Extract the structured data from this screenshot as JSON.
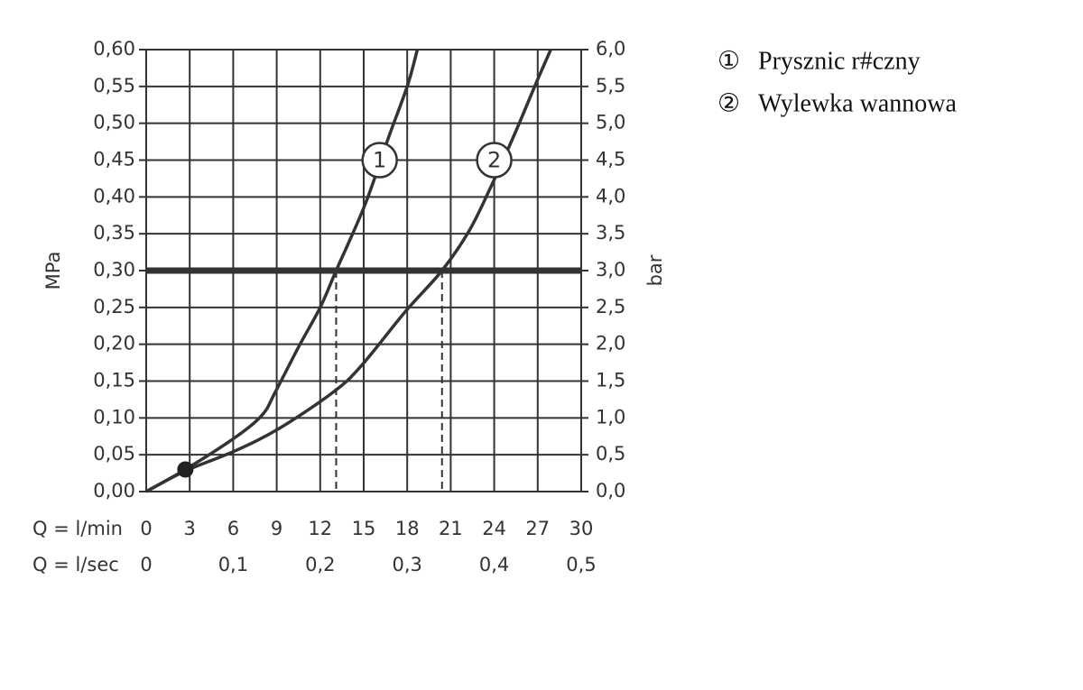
{
  "chart_data": {
    "type": "line",
    "x_label": "Q = l/min",
    "x2_label": "Q = l/sec",
    "y_label": "MPa",
    "y2_label": "bar",
    "xlim": [
      0,
      30
    ],
    "xticks": [
      0,
      3,
      6,
      9,
      12,
      15,
      18,
      21,
      24,
      27,
      30
    ],
    "x2lim": [
      0,
      0.5
    ],
    "x2ticks": [
      0,
      {
        "value": 0.1,
        "label": "0,1"
      },
      {
        "value": 0.2,
        "label": "0,2"
      },
      {
        "value": 0.3,
        "label": "0,3"
      },
      {
        "value": 0.4,
        "label": "0,4"
      },
      {
        "value": 0.5,
        "label": "0,5"
      }
    ],
    "ylim": [
      0,
      0.6
    ],
    "yticks": [
      {
        "value": 0,
        "label": "0,00"
      },
      {
        "value": 0.05,
        "label": "0,05"
      },
      {
        "value": 0.1,
        "label": "0,10"
      },
      {
        "value": 0.15,
        "label": "0,15"
      },
      {
        "value": 0.2,
        "label": "0,20"
      },
      {
        "value": 0.25,
        "label": "0,25"
      },
      {
        "value": 0.3,
        "label": "0,30"
      },
      {
        "value": 0.35,
        "label": "0,35"
      },
      {
        "value": 0.4,
        "label": "0,40"
      },
      {
        "value": 0.45,
        "label": "0,45"
      },
      {
        "value": 0.5,
        "label": "0,50"
      },
      {
        "value": 0.55,
        "label": "0,55"
      },
      {
        "value": 0.6,
        "label": "0,60"
      }
    ],
    "y2lim": [
      0,
      6
    ],
    "y2ticks": [
      {
        "value": 0,
        "label": "0,0"
      },
      {
        "value": 0.5,
        "label": "0,5"
      },
      {
        "value": 1,
        "label": "1,0"
      },
      {
        "value": 1.5,
        "label": "1,5"
      },
      {
        "value": 2,
        "label": "2,0"
      },
      {
        "value": 2.5,
        "label": "2,5"
      },
      {
        "value": 3,
        "label": "3,0"
      },
      {
        "value": 3.5,
        "label": "3,5"
      },
      {
        "value": 4,
        "label": "4,0"
      },
      {
        "value": 4.5,
        "label": "4,5"
      },
      {
        "value": 5,
        "label": "5,0"
      },
      {
        "value": 5.5,
        "label": "5,5"
      },
      {
        "value": 6,
        "label": "6,0"
      }
    ],
    "grid": true,
    "color": "#333333",
    "reference_line": 0.3,
    "dashed_x": [
      13.1,
      20.4
    ],
    "point": {
      "x": 2.7,
      "y": 0.03
    },
    "series": [
      {
        "name": "Prysznic r#czny",
        "legend_symbol": "①",
        "marker_label": "1",
        "label_at": [
          16.1,
          0.45
        ],
        "x": [
          0,
          2.7,
          6.1,
          8,
          8.9,
          10.5,
          12,
          13.1,
          15.1,
          16.7,
          18,
          18.7
        ],
        "values": [
          0,
          0.03,
          0.073,
          0.104,
          0.135,
          0.196,
          0.25,
          0.3,
          0.39,
          0.48,
          0.55,
          0.6
        ]
      },
      {
        "name": "Wylewka wannowa",
        "legend_symbol": "②",
        "marker_label": "2",
        "label_at": [
          24.0,
          0.45
        ],
        "x": [
          0,
          2.7,
          6.1,
          9.2,
          12.9,
          14.8,
          17.9,
          20.4,
          22.3,
          23.8,
          25.4,
          26.9,
          27.9
        ],
        "values": [
          0,
          0.028,
          0.055,
          0.086,
          0.135,
          0.17,
          0.245,
          0.3,
          0.355,
          0.415,
          0.485,
          0.555,
          0.6
        ]
      }
    ]
  }
}
